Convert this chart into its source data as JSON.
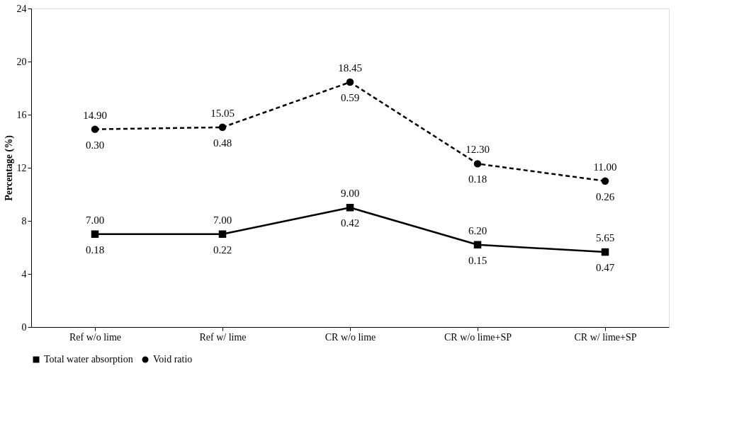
{
  "chart_data": {
    "type": "line",
    "ylabel": "Percentage (%)",
    "categories": [
      "Ref w/o lime",
      "Ref w/ lime",
      "CR w/o lime",
      "CR w/o lime+SP",
      "CR w/ lime+SP"
    ],
    "series": [
      {
        "name": "Total water absorption",
        "color": "#000000",
        "marker": "square",
        "line_style": "solid",
        "values": [
          7.0,
          7.0,
          9.0,
          6.2,
          5.65
        ],
        "value_labels": [
          "7.00",
          "7.00",
          "9.00",
          "6.20",
          "5.65"
        ]
      },
      {
        "name": "Void ratio",
        "color": "#000000",
        "marker": "circle",
        "line_style": "dashed",
        "values": [
          14.9,
          15.05,
          18.45,
          12.3,
          11.0
        ],
        "value_labels": [
          "14.90",
          "15.05",
          "18.45",
          "12.30",
          "11.00"
        ]
      }
    ],
    "annotations": [
      {
        "text": "0.18",
        "x": "Ref w/o lime",
        "y": 7.0
      },
      {
        "text": "0.22",
        "x": "Ref w/ lime",
        "y": 7.0
      },
      {
        "text": "0.42",
        "x": "CR w/o lime",
        "y": 9.0
      },
      {
        "text": "0.15",
        "x": "CR w/o lime+SP",
        "y": 6.2
      },
      {
        "text": "0.47",
        "x": "CR w/ lime+SP",
        "y": 5.65
      },
      {
        "text": "0.30",
        "x": "Ref w/o lime",
        "y": 14.9
      },
      {
        "text": "0.48",
        "x": "Ref w/ lime",
        "y": 15.05
      },
      {
        "text": "0.59",
        "x": "CR w/o lime",
        "y": 18.45
      },
      {
        "text": "0.18",
        "x": "CR w/o lime+SP",
        "y": 12.3
      },
      {
        "text": "0.26",
        "x": "CR w/ lime+SP",
        "y": 11.0
      }
    ],
    "ylim": [
      0,
      24
    ],
    "yticks": [
      0,
      4,
      8,
      12,
      16,
      20,
      24
    ],
    "grid": false,
    "legend": "bottom"
  }
}
